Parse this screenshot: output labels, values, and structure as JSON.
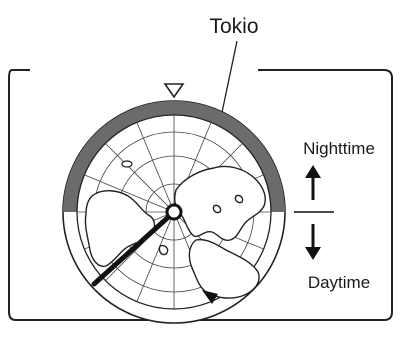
{
  "labels": {
    "city": "Tokio",
    "nighttime": "Nighttime",
    "daytime": "Daytime"
  },
  "icons": {
    "top_marker": "triangle-down-icon",
    "up_arrow": "arrow-up-icon",
    "down_arrow": "arrow-down-icon",
    "hour_hand": "clock-hand-icon"
  },
  "colors": {
    "night_band": "#6b6b6b",
    "line": "#222222"
  }
}
